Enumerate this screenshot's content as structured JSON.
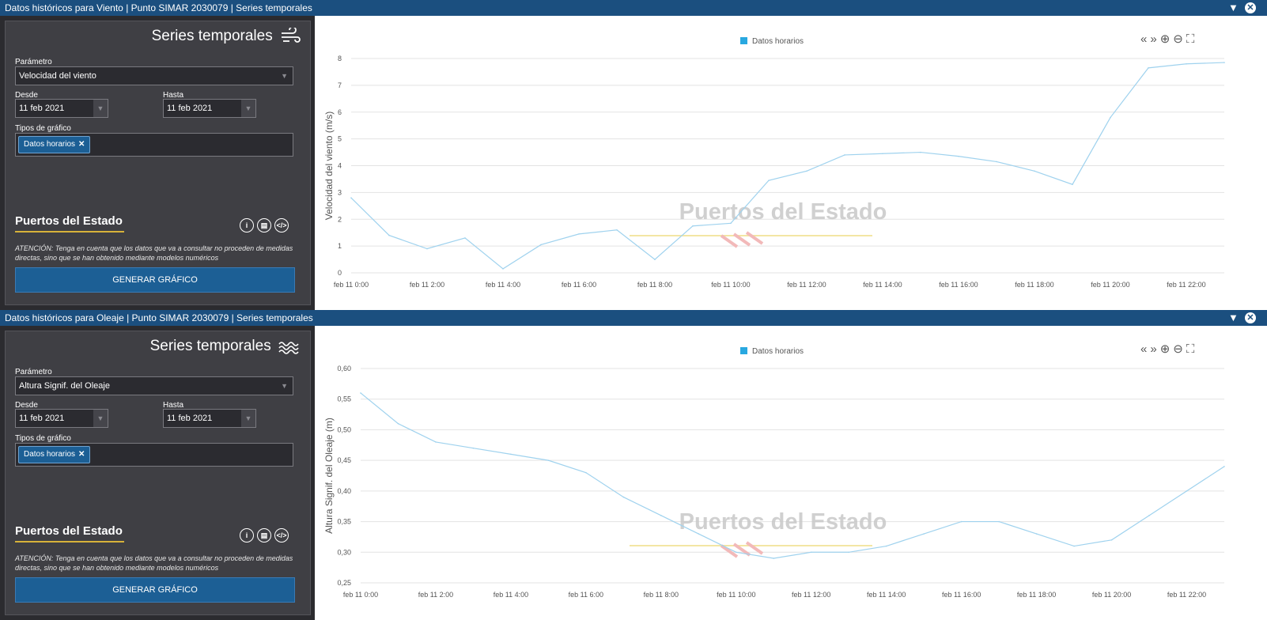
{
  "panels": [
    {
      "title": "Datos históricos para Viento | Punto SIMAR 2030079 | Series temporales",
      "heading": "Series temporales",
      "heading_icon": "wind-icon",
      "param_label": "Parámetro",
      "param_value": "Velocidad del viento",
      "desde_label": "Desde",
      "desde_value": "11 feb 2021",
      "hasta_label": "Hasta",
      "hasta_value": "11 feb 2021",
      "tipos_label": "Tipos de gráfico",
      "tag": "Datos horarios",
      "logo": "Puertos del Estado",
      "note": "ATENCIÓN: Tenga en cuenta que los datos que va a consultar no proceden de medidas directas, sino que se han obtenido mediante modelos numéricos",
      "button": "GENERAR GRÁFICO",
      "watermark": "Puertos del Estado",
      "chart_data": {
        "type": "line",
        "legend": [
          "Datos horarios"
        ],
        "ylabel": "Velocidad del viento (m/s)",
        "xlabel": "",
        "ylim": [
          0,
          8
        ],
        "yticks": [
          "0",
          "1",
          "2",
          "3",
          "4",
          "5",
          "6",
          "7",
          "8"
        ],
        "xticks": [
          "feb 11 0:00",
          "feb 11 2:00",
          "feb 11 4:00",
          "feb 11 6:00",
          "feb 11 8:00",
          "feb 11 10:00",
          "feb 11 12:00",
          "feb 11 14:00",
          "feb 11 16:00",
          "feb 11 18:00",
          "feb 11 20:00",
          "feb 11 22:00"
        ],
        "x_hours": [
          0,
          1,
          2,
          3,
          4,
          5,
          6,
          7,
          8,
          9,
          10,
          11,
          12,
          13,
          14,
          15,
          16,
          17,
          18,
          19,
          20,
          21,
          22,
          23
        ],
        "values": [
          2.8,
          1.4,
          0.9,
          1.3,
          0.15,
          1.05,
          1.45,
          1.6,
          0.5,
          1.75,
          1.85,
          3.45,
          3.8,
          4.4,
          4.45,
          4.5,
          4.35,
          4.15,
          3.8,
          3.3,
          5.8,
          7.65,
          7.8,
          7.85
        ],
        "color": "#29a8e0"
      }
    },
    {
      "title": "Datos históricos para Oleaje | Punto SIMAR 2030079 | Series temporales",
      "heading": "Series temporales",
      "heading_icon": "wave-icon",
      "param_label": "Parámetro",
      "param_value": "Altura Signif. del Oleaje",
      "desde_label": "Desde",
      "desde_value": "11 feb 2021",
      "hasta_label": "Hasta",
      "hasta_value": "11 feb 2021",
      "tipos_label": "Tipos de gráfico",
      "tag": "Datos horarios",
      "logo": "Puertos del Estado",
      "note": "ATENCIÓN: Tenga en cuenta que los datos que va a consultar no proceden de medidas directas, sino que se han obtenido mediante modelos numéricos",
      "button": "GENERAR GRÁFICO",
      "watermark": "Puertos del Estado",
      "chart_data": {
        "type": "line",
        "legend": [
          "Datos horarios"
        ],
        "ylabel": "Altura Signif. del Oleaje (m)",
        "xlabel": "",
        "ylim": [
          0.25,
          0.6
        ],
        "yticks": [
          "0,25",
          "0,30",
          "0,35",
          "0,40",
          "0,45",
          "0,50",
          "0,55",
          "0,60"
        ],
        "xticks": [
          "feb 11 0:00",
          "feb 11 2:00",
          "feb 11 4:00",
          "feb 11 6:00",
          "feb 11 8:00",
          "feb 11 10:00",
          "feb 11 12:00",
          "feb 11 14:00",
          "feb 11 16:00",
          "feb 11 18:00",
          "feb 11 20:00",
          "feb 11 22:00"
        ],
        "x_hours": [
          0,
          1,
          2,
          3,
          4,
          5,
          6,
          7,
          8,
          9,
          10,
          11,
          12,
          13,
          14,
          15,
          16,
          17,
          18,
          19,
          20,
          21,
          22,
          23
        ],
        "values": [
          0.56,
          0.51,
          0.48,
          0.47,
          0.46,
          0.45,
          0.43,
          0.39,
          0.36,
          0.33,
          0.3,
          0.29,
          0.3,
          0.3,
          0.31,
          0.33,
          0.35,
          0.35,
          0.33,
          0.31,
          0.32,
          0.36,
          0.4,
          0.44
        ],
        "color": "#29a8e0"
      }
    }
  ]
}
